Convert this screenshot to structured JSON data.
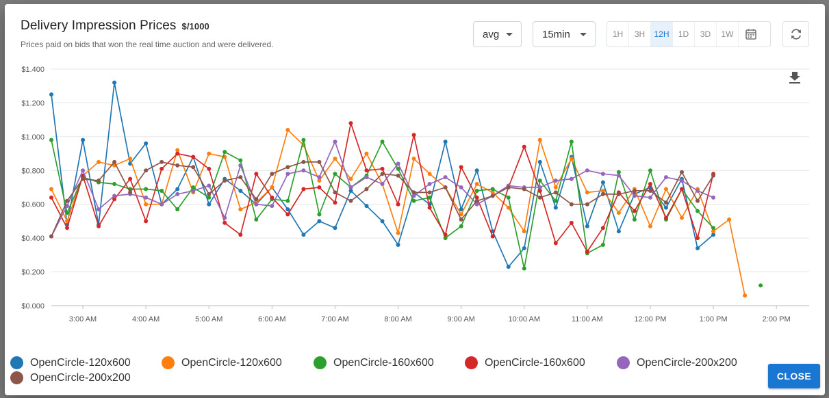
{
  "dialog": {
    "title": "Delivery Impression Prices",
    "title_unit": "$/1000",
    "subtitle": "Prices paid on bids that won the real time auction and were delivered.",
    "aggregate_select": "avg",
    "interval_select": "15min",
    "ranges": [
      "1H",
      "3H",
      "12H",
      "1D",
      "3D",
      "1W"
    ],
    "active_range": "12H",
    "calendar_icon": "calendar-icon",
    "refresh_icon": "refresh-icon",
    "download_icon": "download-icon",
    "close_label": "CLOSE",
    "accent": "#1976d2"
  },
  "chart_data": {
    "type": "line",
    "x_labels": [
      "3:00 AM",
      "4:00 AM",
      "5:00 AM",
      "6:00 AM",
      "7:00 AM",
      "8:00 AM",
      "9:00 AM",
      "10:00 AM",
      "11:00 AM",
      "12:00 PM",
      "1:00 PM",
      "2:00 PM"
    ],
    "x_start": "2:30 AM",
    "x_end": "2:30 PM",
    "y_ticks": [
      "$0.000",
      "$0.200",
      "$0.400",
      "$0.600",
      "$0.800",
      "$1.000",
      "$1.200",
      "$1.400"
    ],
    "ylim": [
      0,
      1.4
    ],
    "grid": true,
    "legend_position": "bottom",
    "series": [
      {
        "name": "OpenCircle-120x600",
        "color": "#1f77b4",
        "values": [
          1.25,
          0.48,
          0.98,
          0.48,
          1.32,
          0.84,
          0.96,
          0.6,
          0.69,
          0.88,
          0.6,
          0.75,
          0.68,
          0.6,
          0.7,
          0.57,
          0.42,
          0.5,
          0.46,
          0.68,
          0.59,
          0.5,
          0.36,
          0.67,
          0.6,
          0.97,
          0.57,
          0.8,
          0.44,
          0.23,
          0.34,
          0.85,
          0.58,
          0.88,
          0.47,
          0.73,
          0.44,
          0.66,
          0.7,
          0.58,
          0.75,
          0.34,
          0.42,
          null,
          null,
          null
        ]
      },
      {
        "name": "OpenCircle-120x600",
        "color": "#ff7f0e",
        "values": [
          0.69,
          0.5,
          0.77,
          0.85,
          0.83,
          0.87,
          0.6,
          0.6,
          0.92,
          0.67,
          0.9,
          0.88,
          0.57,
          0.61,
          0.7,
          1.04,
          0.95,
          0.74,
          0.87,
          0.75,
          0.9,
          0.72,
          0.43,
          0.87,
          0.78,
          0.7,
          0.54,
          0.72,
          0.67,
          0.58,
          0.44,
          0.98,
          0.7,
          0.87,
          0.67,
          0.68,
          0.55,
          0.69,
          0.47,
          0.69,
          0.52,
          0.69,
          0.44,
          0.51,
          0.06,
          null
        ]
      },
      {
        "name": "OpenCircle-160x600",
        "color": "#2ca02c",
        "values": [
          0.98,
          0.55,
          0.76,
          0.73,
          0.72,
          0.69,
          0.69,
          0.68,
          0.57,
          0.7,
          0.64,
          0.91,
          0.86,
          0.51,
          0.63,
          0.62,
          0.98,
          0.54,
          0.78,
          0.7,
          0.77,
          0.97,
          0.81,
          0.62,
          0.64,
          0.4,
          0.47,
          0.68,
          0.69,
          0.64,
          0.22,
          0.74,
          0.62,
          0.97,
          0.31,
          0.36,
          0.79,
          0.51,
          0.8,
          0.51,
          0.69,
          0.56,
          0.46,
          null,
          null,
          0.12
        ]
      },
      {
        "name": "OpenCircle-160x600",
        "color": "#d62728",
        "values": [
          0.64,
          0.46,
          0.77,
          0.47,
          0.63,
          0.75,
          0.5,
          0.81,
          0.9,
          0.88,
          0.81,
          0.49,
          0.42,
          0.78,
          0.64,
          0.54,
          0.69,
          0.7,
          0.61,
          1.08,
          0.8,
          0.81,
          0.6,
          1.01,
          0.58,
          0.42,
          0.82,
          0.64,
          0.41,
          0.7,
          0.94,
          0.68,
          0.37,
          0.49,
          0.32,
          0.46,
          0.67,
          0.56,
          0.72,
          0.52,
          0.69,
          0.4,
          0.78,
          null,
          null,
          null
        ]
      },
      {
        "name": "OpenCircle-200x200",
        "color": "#9467bd",
        "values": [
          0.41,
          0.59,
          0.8,
          0.57,
          0.65,
          0.66,
          0.64,
          0.6,
          0.66,
          0.68,
          0.71,
          0.52,
          0.83,
          0.6,
          0.59,
          0.78,
          0.8,
          0.76,
          0.97,
          0.7,
          0.76,
          0.72,
          0.84,
          0.65,
          0.72,
          0.76,
          0.7,
          0.6,
          0.65,
          0.71,
          0.7,
          0.7,
          0.74,
          0.75,
          0.8,
          0.78,
          0.77,
          0.65,
          0.64,
          0.76,
          0.74,
          0.68,
          0.64,
          null,
          null,
          null
        ]
      },
      {
        "name": "OpenCircle-200x200",
        "color": "#8c564b",
        "values": [
          0.41,
          0.62,
          0.75,
          0.74,
          0.85,
          0.67,
          0.8,
          0.85,
          0.83,
          0.82,
          0.66,
          0.74,
          0.76,
          0.63,
          0.78,
          0.82,
          0.85,
          0.85,
          0.67,
          0.62,
          0.69,
          0.78,
          0.77,
          0.67,
          0.67,
          0.7,
          0.51,
          0.62,
          0.65,
          0.7,
          0.69,
          0.64,
          0.67,
          0.6,
          0.6,
          0.66,
          0.66,
          0.68,
          0.68,
          0.61,
          0.79,
          0.62,
          0.77,
          null,
          null,
          null
        ]
      }
    ]
  }
}
